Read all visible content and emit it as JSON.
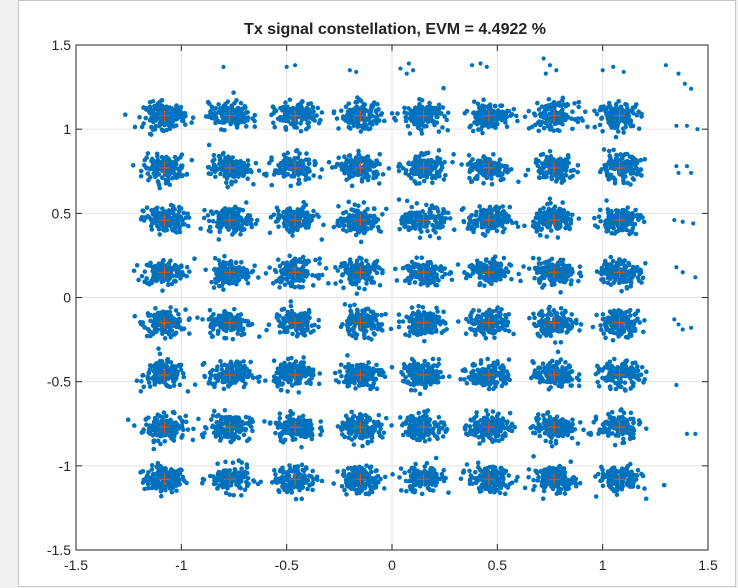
{
  "chart_data": {
    "type": "scatter",
    "title": "Tx signal constellation, EVM = 4.4922 %",
    "xlim": [
      -1.5,
      1.5
    ],
    "ylim": [
      -1.5,
      1.5
    ],
    "xticks": [
      -1.5,
      -1,
      -0.5,
      0,
      0.5,
      1,
      1.5
    ],
    "yticks": [
      -1.5,
      -1,
      -0.5,
      0,
      0.5,
      1,
      1.5
    ],
    "xtick_labels": [
      "-1.5",
      "-1",
      "-0.5",
      "0",
      "0.5",
      "1",
      "1.5"
    ],
    "ytick_labels": [
      "-1.5",
      "-1",
      "-0.5",
      "0",
      "0.5",
      "1",
      "1.5"
    ],
    "grid": true,
    "series": [
      {
        "kind": "received-symbols",
        "marker": "dot",
        "color": "#0072BD",
        "cluster_centers": [
          -1.08,
          -0.77,
          -0.46,
          -0.15,
          0.15,
          0.46,
          0.77,
          1.08
        ],
        "cluster_spread": 0.045
      },
      {
        "kind": "reference-points",
        "marker": "+",
        "color": "#D95319",
        "x": [
          -1.08,
          -0.77,
          -0.46,
          -0.15,
          0.15,
          0.46,
          0.77,
          1.08
        ],
        "y": [
          -1.08,
          -0.77,
          -0.46,
          -0.15,
          0.15,
          0.46,
          0.77,
          1.08
        ]
      }
    ],
    "outliers": [
      [
        -0.8,
        1.37
      ],
      [
        -0.5,
        1.37
      ],
      [
        -0.46,
        1.38
      ],
      [
        -0.2,
        1.35
      ],
      [
        -0.17,
        1.34
      ],
      [
        0.04,
        1.36
      ],
      [
        0.07,
        1.33
      ],
      [
        0.1,
        1.35
      ],
      [
        0.08,
        1.39
      ],
      [
        0.38,
        1.38
      ],
      [
        0.42,
        1.39
      ],
      [
        0.45,
        1.37
      ],
      [
        0.72,
        1.42
      ],
      [
        0.75,
        1.38
      ],
      [
        0.73,
        1.33
      ],
      [
        0.78,
        1.35
      ],
      [
        1.0,
        1.35
      ],
      [
        1.05,
        1.37
      ],
      [
        1.1,
        1.34
      ],
      [
        1.3,
        1.38
      ],
      [
        1.36,
        1.33
      ],
      [
        1.39,
        1.27
      ],
      [
        1.42,
        1.24
      ],
      [
        1.35,
        1.02
      ],
      [
        1.4,
        1.02
      ],
      [
        1.45,
        1.0
      ],
      [
        1.35,
        0.78
      ],
      [
        1.4,
        0.78
      ],
      [
        1.36,
        0.74
      ],
      [
        1.42,
        0.74
      ],
      [
        1.34,
        0.46
      ],
      [
        1.38,
        0.45
      ],
      [
        1.43,
        0.44
      ],
      [
        1.35,
        0.18
      ],
      [
        1.38,
        0.15
      ],
      [
        1.44,
        0.12
      ],
      [
        1.34,
        -0.13
      ],
      [
        1.36,
        -0.16
      ],
      [
        1.38,
        -0.19
      ],
      [
        1.42,
        -0.18
      ],
      [
        1.35,
        -0.52
      ],
      [
        1.4,
        -0.81
      ],
      [
        1.44,
        -0.81
      ]
    ]
  }
}
